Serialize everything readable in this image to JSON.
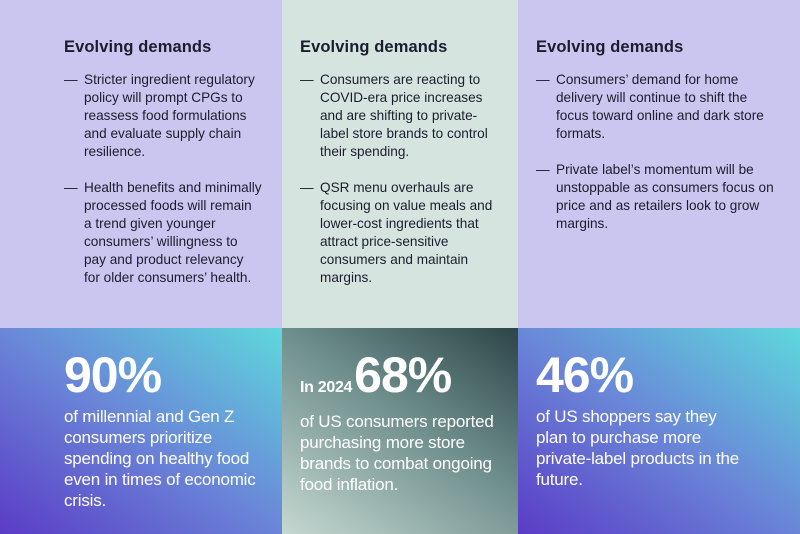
{
  "columns": [
    {
      "heading": "Evolving demands",
      "bullets": [
        "Stricter ingredient regulatory policy will prompt CPGs to reassess food formulations and evaluate supply chain resilience.",
        "Health benefits and minimally processed foods will remain a trend given younger consumers’ willingness to pay and product relevancy for older consumers’ health."
      ],
      "stat_prefix": "",
      "stat": "90%",
      "stat_text": "of millennial and Gen Z consumers prioritize spending on healthy food even in times of economic crisis."
    },
    {
      "heading": "Evolving demands",
      "bullets": [
        "Consumers are reacting to COVID-era price increases and are shifting to private-label store brands to control their spending.",
        "QSR menu overhauls are focusing on value meals and lower-cost ingredients that attract price-sensitive consumers and maintain margins."
      ],
      "stat_prefix": "In 2024",
      "stat": "68%",
      "stat_text": "of US consumers reported purchasing more store brands to combat ongoing food inflation."
    },
    {
      "heading": "Evolving demands",
      "bullets": [
        "Consumers’ demand for home delivery will continue to shift the focus toward online and dark store formats.",
        "Private label’s momentum will be unstoppable as consumers focus on price and as retailers look to grow margins."
      ],
      "stat_prefix": "",
      "stat": "46%",
      "stat_text": "of US shoppers say they plan to purchase more private-label products in the future."
    }
  ],
  "dash": "—",
  "colors": {
    "lavender": "#cbc6ef",
    "mint": "#d6e4df",
    "purple": "#5a3cc6",
    "cyan": "#5ed8dc",
    "dark_teal": "#2c4547"
  }
}
